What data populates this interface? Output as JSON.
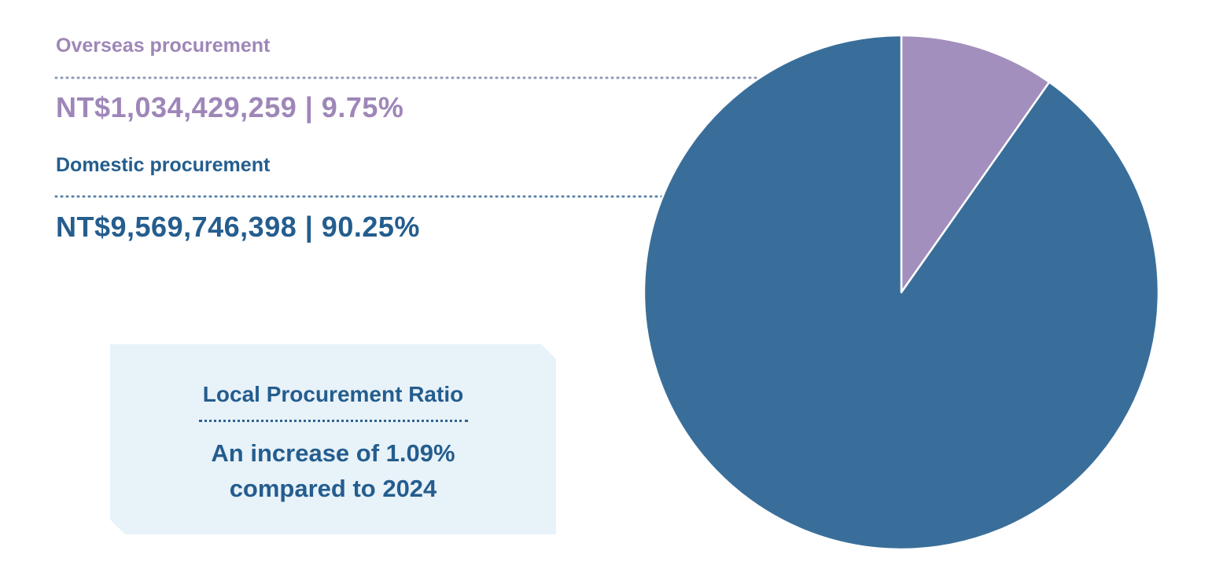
{
  "chart_data": {
    "type": "pie",
    "slices": [
      {
        "label": "Overseas procurement",
        "value": 1034429259,
        "percent": 9.75,
        "display": "NT$1,034,429,259 | 9.75%",
        "color": "#a38fbd"
      },
      {
        "label": "Domestic procurement",
        "value": 9569746398,
        "percent": 90.25,
        "display": "NT$9,569,746,398 | 90.25%",
        "color": "#3a6e9a"
      }
    ],
    "start_angle_deg": 0,
    "direction": "clockwise"
  },
  "callout": {
    "title": "Local Procurement Ratio",
    "line1": "An increase of 1.09%",
    "line2": "compared to 2024"
  },
  "colors": {
    "overseas_text": "#9e87b8",
    "domestic_text": "#245d8e",
    "callout_bg": "#e8f2f9"
  }
}
